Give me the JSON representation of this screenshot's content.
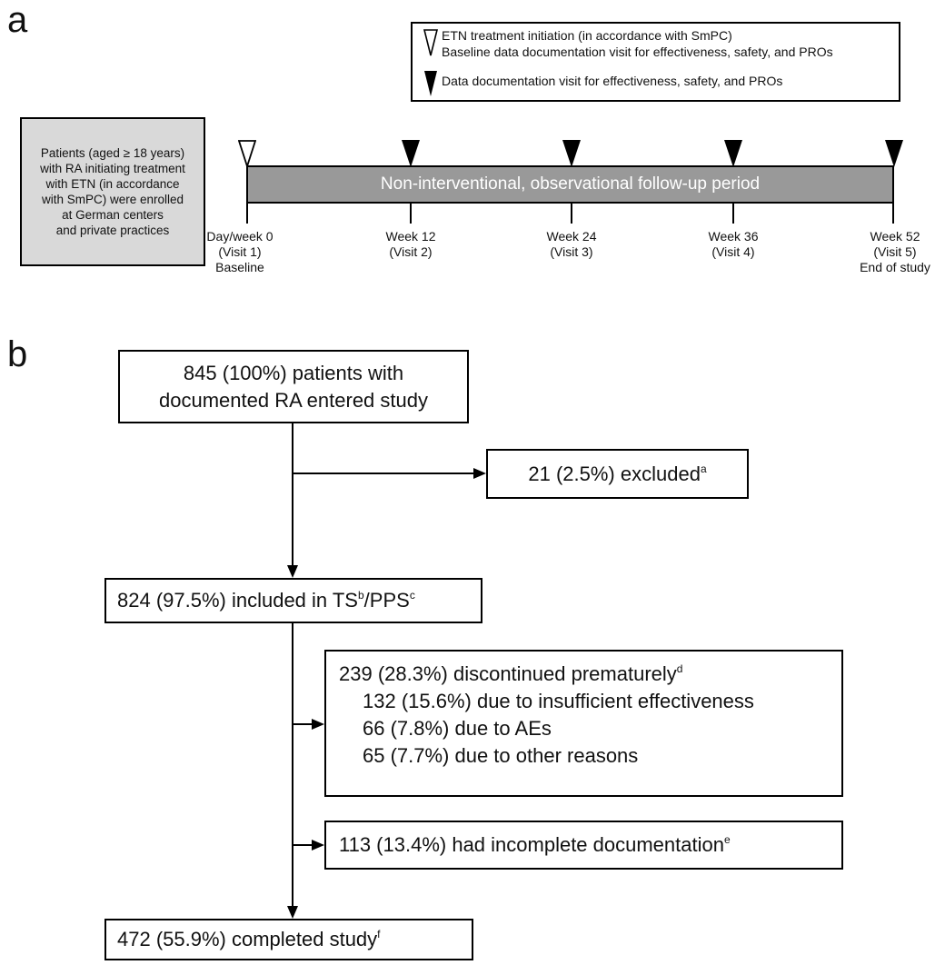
{
  "panel_a": {
    "label": "a",
    "legend": {
      "open_marker_line1": "ETN treatment initiation (in accordance with SmPC)",
      "open_marker_line2": "Baseline data documentation visit for effectiveness, safety, and PROs",
      "filled_marker_line": "Data documentation visit for effectiveness, safety, and PROs"
    },
    "enrollment_lines": [
      "Patients (aged ≥ 18 years)",
      "with RA initiating treatment",
      "with ETN (in accordance",
      "with SmPC) were enrolled",
      "at German centers",
      "and private practices"
    ],
    "timeline_label": "Non-interventional, observational follow-up period",
    "visits": [
      {
        "line1": "Day/week 0",
        "line2": "(Visit 1)",
        "line3": "Baseline",
        "marker": "open-triangle-icon"
      },
      {
        "line1": "Week 12",
        "line2": "(Visit 2)",
        "line3": "",
        "marker": "filled-triangle-icon"
      },
      {
        "line1": "Week 24",
        "line2": "(Visit 3)",
        "line3": "",
        "marker": "filled-triangle-icon"
      },
      {
        "line1": "Week 36",
        "line2": "(Visit 4)",
        "line3": "",
        "marker": "filled-triangle-icon"
      },
      {
        "line1": "Week 52",
        "line2": "(Visit 5)",
        "line3": "End of study",
        "marker": "filled-triangle-icon"
      }
    ]
  },
  "panel_b": {
    "label": "b",
    "entered": {
      "line1": "845 (100%) patients with",
      "line2": "documented RA entered study"
    },
    "excluded": {
      "text": "21 (2.5%) excluded",
      "sup": "a"
    },
    "included": {
      "text1": "824 (97.5%) included in TS",
      "sup1": "b",
      "text2": "/PPS",
      "sup2": "c"
    },
    "discontinued": {
      "title": "239 (28.3%) discontinued prematurely",
      "title_sup": "d",
      "reasons": [
        "132 (15.6%) due to insufficient effectiveness",
        "66 (7.8%) due to AEs",
        "65 (7.7%) due to other reasons"
      ]
    },
    "incomplete": {
      "text": "113 (13.4%) had incomplete documentation",
      "sup": "e"
    },
    "completed": {
      "text": "472 (55.9%) completed study",
      "sup": "f"
    }
  },
  "colors": {
    "enroll_box": "#d9d9d9",
    "timeline_bar": "#999999",
    "line": "#000000"
  }
}
